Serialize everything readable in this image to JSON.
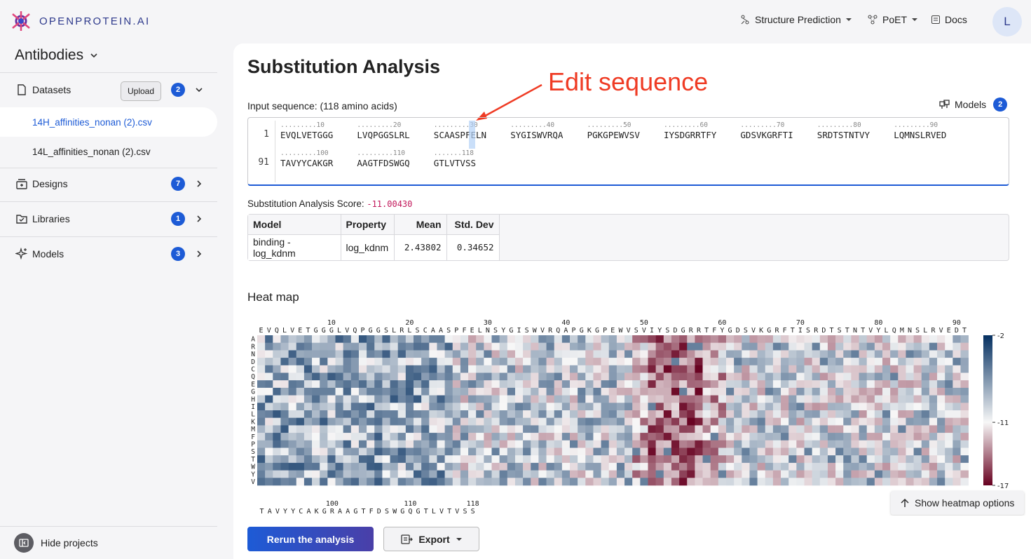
{
  "app": {
    "logo_text": "OPENPROTEIN.AI",
    "accent": "#1d5bd6"
  },
  "topnav": {
    "structure": "Structure Prediction",
    "poet": "PoET",
    "docs": "Docs",
    "avatar": "L"
  },
  "sidebar": {
    "project": "Antibodies",
    "datasets": {
      "label": "Datasets",
      "upload": "Upload",
      "count": "2"
    },
    "files": [
      "14H_affinities_nonan (2).csv",
      "14L_affinities_nonan (2).csv"
    ],
    "designs": {
      "label": "Designs",
      "count": "7"
    },
    "libraries": {
      "label": "Libraries",
      "count": "1"
    },
    "models": {
      "label": "Models",
      "count": "3"
    },
    "hide_projects": "Hide projects"
  },
  "main": {
    "title": "Substitution Analysis",
    "annotation": "Edit sequence",
    "input_label": "Input sequence: (118 amino acids)",
    "models_label": "Models",
    "models_count": "2",
    "sequence": {
      "line1_number": "1",
      "line2_number": "91",
      "line1_chunks": [
        "EVQLVETGGG",
        "LVQPGGSLRL",
        "SCAASPFELN",
        "SYGISWVRQA",
        "PGKGPEWVSV",
        "IYSDGRRTFY",
        "GDSVKGRFTI",
        "SRDTSTNTVY",
        "LQMNSLRVED"
      ],
      "line1_rulers": [
        ".........10",
        ".........20",
        ".........30",
        ".........40",
        ".........50",
        ".........60",
        ".........70",
        ".........80",
        ".........90"
      ],
      "line2_chunks": [
        "TAVYYCAKGR",
        "AAGTFDSWGQ",
        "GTLVTVSS"
      ],
      "line2_rulers": [
        ".........100",
        ".........110",
        ".......118"
      ]
    },
    "score_label": "Substitution Analysis Score:",
    "score_value": "-11.00430",
    "table": {
      "headers": [
        "Model",
        "Property",
        "Mean",
        "Std. Dev"
      ],
      "row": [
        "binding - log_kdnm",
        "log_kdnm",
        "2.43802",
        "0.34652"
      ]
    },
    "heatmap": {
      "title": "Heat map",
      "sequence": "EVQLVETGGGLVQPGGSLRLSCAASPFELNSYGISWVRQAPGKGPEWVSVIYSDGRRTFYGDSVKGRFTISRDTSTNTVYLQMNSLRVEDTAVYYCAKGRAAGTFDSWGQGTLVTVSS",
      "amino_acids": [
        "A",
        "R",
        "N",
        "D",
        "C",
        "Q",
        "E",
        "G",
        "H",
        "I",
        "L",
        "K",
        "M",
        "F",
        "P",
        "S",
        "T",
        "W",
        "Y",
        "V"
      ],
      "top_ticks": [
        "10",
        "20",
        "30",
        "40",
        "50",
        "60",
        "70",
        "80",
        "90"
      ],
      "bottom_ticks": [
        "100",
        "110",
        "118"
      ],
      "colorbar_labels": [
        "-2",
        "-11",
        "-17"
      ],
      "colors": {
        "low": "#67001f",
        "mid": "#f7f7f7",
        "high": "#053061"
      }
    },
    "heatmap_options": "Show heatmap options",
    "rerun": "Rerun the analysis",
    "export": "Export"
  }
}
